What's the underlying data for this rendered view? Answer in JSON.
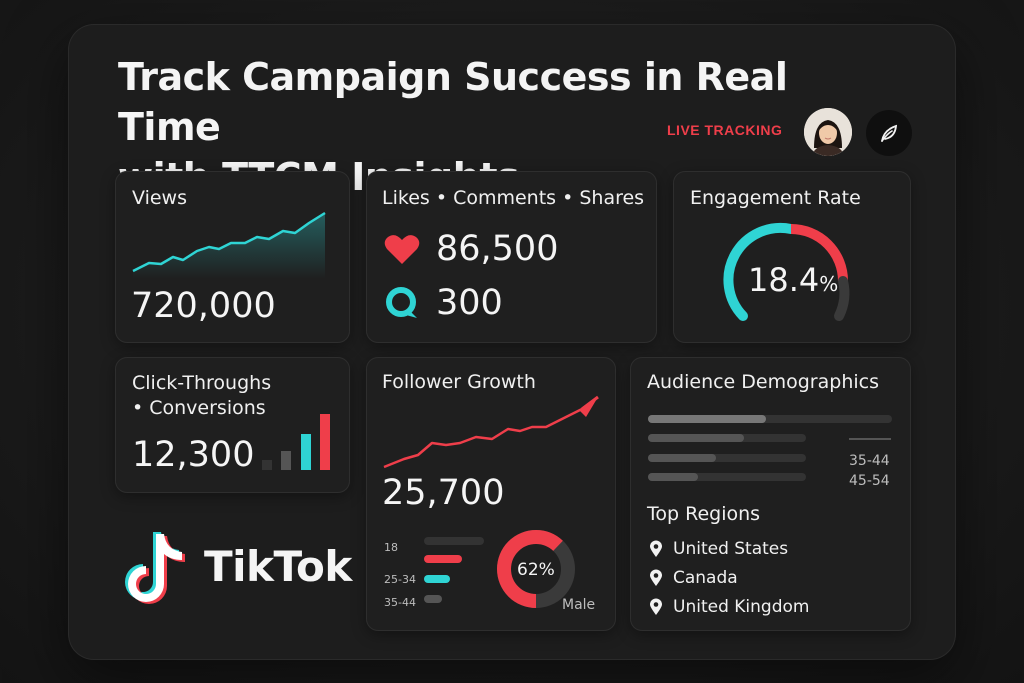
{
  "header": {
    "title_line1": "Track Campaign Success in Real Time",
    "title_line2": "with TTCM Insights",
    "live_label": "LIVE TRACKING"
  },
  "views": {
    "title": "Views",
    "value": "720,000"
  },
  "interactions": {
    "title": "Likes • Comments • Shares",
    "likes_value": "86,500",
    "comments_value": "300"
  },
  "engagement": {
    "title": "Engagement Rate",
    "value": "18.4",
    "unit": "%",
    "percent": 18.4
  },
  "clicks": {
    "title_line1": "Click-Throughs",
    "title_line2": "• Conversions",
    "value": "12,300"
  },
  "followers": {
    "title": "Follower Growth",
    "value": "25,700",
    "age_labels": [
      "18",
      "25-34",
      "35-44"
    ],
    "donut_label": "62%",
    "donut_percent": 62,
    "donut_caption": "Male"
  },
  "audience": {
    "title": "Audience Demographics",
    "age_labels": [
      "35-44",
      "45-54"
    ],
    "regions_title": "Top Regions",
    "regions": [
      "United States",
      "Canada",
      "United Kingdom"
    ]
  },
  "brand": {
    "name": "TikTok"
  },
  "colors": {
    "accent_red": "#ef3e4a",
    "accent_cyan": "#2fd4d4",
    "panel": "#1d1d1d",
    "card": "#1f1f1f"
  }
}
